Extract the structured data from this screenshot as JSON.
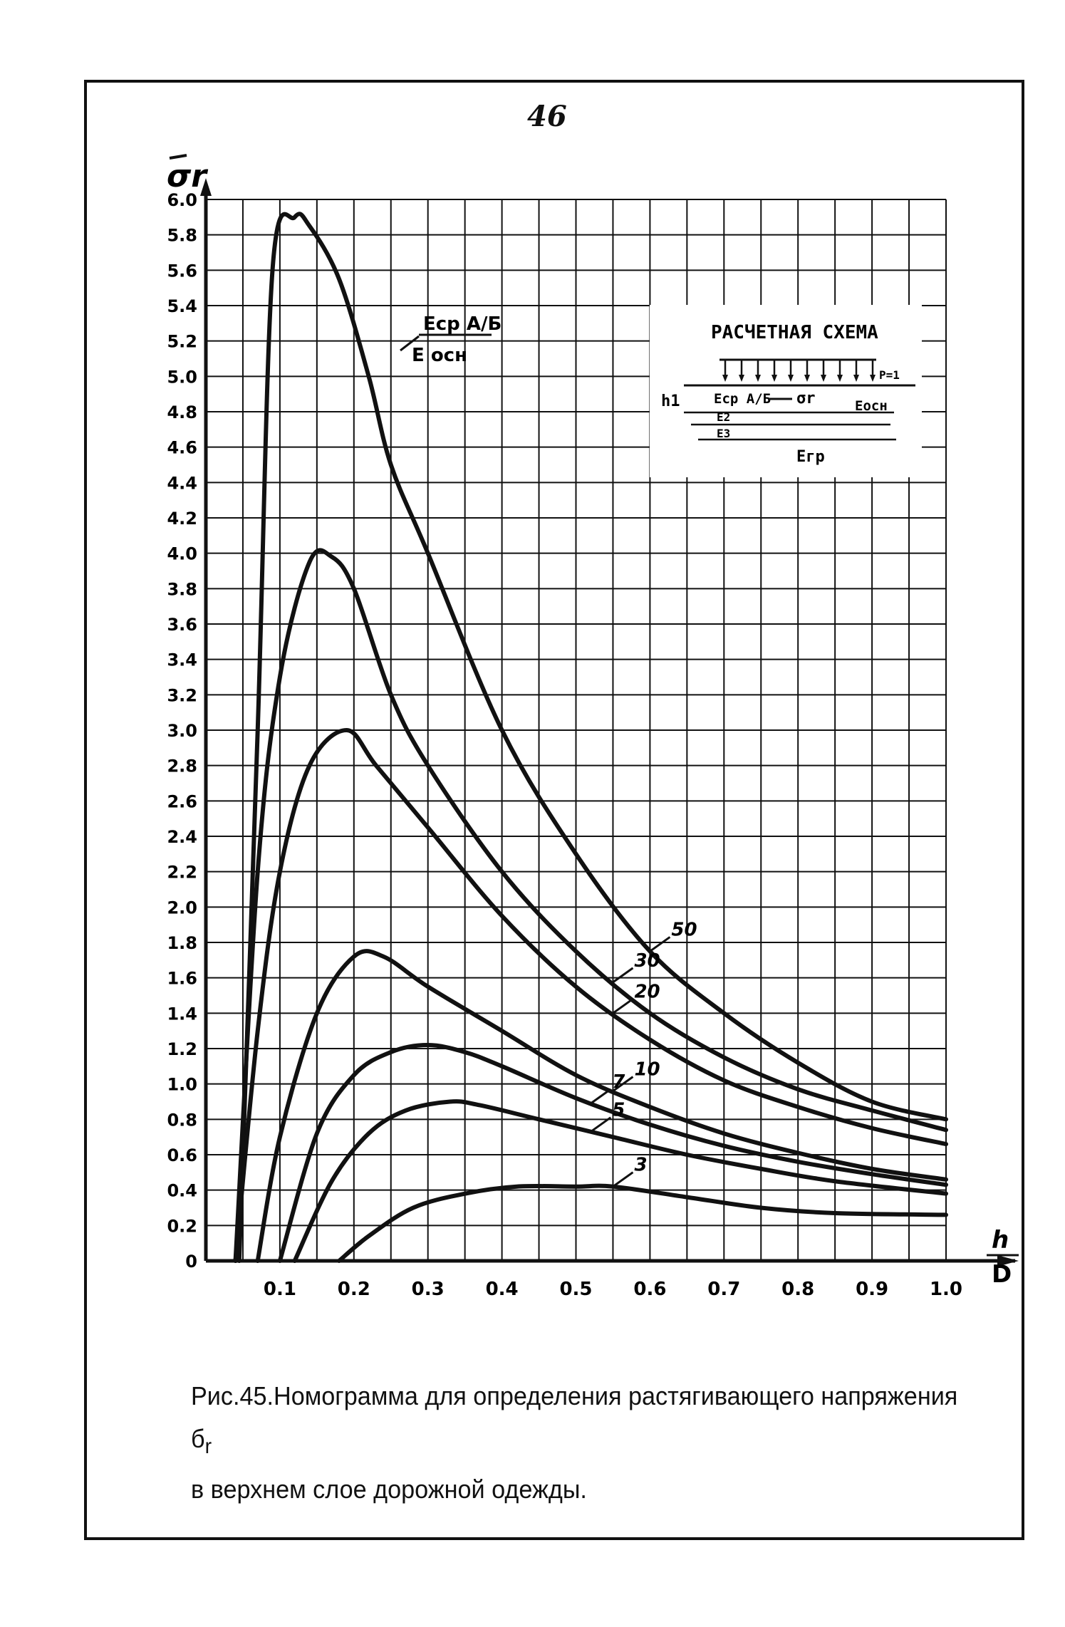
{
  "page": {
    "number": "46"
  },
  "caption": {
    "line1": "Рис.45.Номограмма для определения растягивающего напряжения б",
    "line1_sub": "r",
    "line2": "в верхнем слое дорожной одежды."
  },
  "scheme": {
    "title": "РАСЧЕТНАЯ СХЕМА",
    "h1": "h1",
    "p": "P=1",
    "e_ab": "Eср А/Б",
    "sigma": "σr",
    "e_osn": "Eосн",
    "e2": "E2",
    "e3": "E3",
    "egr": "Eгр"
  },
  "chart_data": {
    "type": "line",
    "title": "",
    "ylabel": "σr",
    "xlabel": "h/D",
    "xlim": [
      0,
      1.0
    ],
    "ylim": [
      0,
      6.0
    ],
    "grid": true,
    "legend_placement": "inline labels on curves",
    "param_label": {
      "top": "Eср А/Б",
      "bottom": "E осн"
    },
    "x_ticks": [
      "0.1",
      "0.2",
      "0.3",
      "0.4",
      "0.5",
      "0.6",
      "0.7",
      "0.8",
      "0.9",
      "1.0"
    ],
    "y_ticks": [
      "0",
      "0.2",
      "0.4",
      "0.6",
      "0.8",
      "1.0",
      "1.2",
      "1.4",
      "1.6",
      "1.8",
      "2.0",
      "2.2",
      "2.4",
      "2.6",
      "2.8",
      "3.0",
      "3.2",
      "3.4",
      "3.6",
      "3.8",
      "4.0",
      "4.2",
      "4.4",
      "4.6",
      "4.8",
      "5.0",
      "5.2",
      "5.4",
      "5.6",
      "5.8",
      "6.0"
    ],
    "series": [
      {
        "name": "50",
        "x": [
          0.045,
          0.07,
          0.09,
          0.12,
          0.14,
          0.18,
          0.22,
          0.25,
          0.3,
          0.4,
          0.5,
          0.6,
          0.7,
          0.8,
          0.9,
          1.0
        ],
        "y": [
          0,
          3.0,
          5.6,
          5.9,
          5.85,
          5.55,
          5.0,
          4.5,
          4.0,
          3.0,
          2.3,
          1.75,
          1.4,
          1.12,
          0.9,
          0.8
        ]
      },
      {
        "name": "30",
        "x": [
          0.04,
          0.07,
          0.1,
          0.14,
          0.17,
          0.2,
          0.25,
          0.3,
          0.4,
          0.5,
          0.6,
          0.7,
          0.8,
          0.9,
          1.0
        ],
        "y": [
          0,
          2.2,
          3.3,
          3.95,
          3.98,
          3.8,
          3.2,
          2.8,
          2.2,
          1.75,
          1.4,
          1.15,
          0.97,
          0.85,
          0.74
        ]
      },
      {
        "name": "20",
        "x": [
          0.04,
          0.07,
          0.1,
          0.14,
          0.19,
          0.23,
          0.3,
          0.4,
          0.5,
          0.6,
          0.7,
          0.8,
          0.9,
          1.0
        ],
        "y": [
          0,
          1.3,
          2.2,
          2.8,
          3.0,
          2.8,
          2.45,
          1.95,
          1.55,
          1.25,
          1.02,
          0.87,
          0.75,
          0.66
        ]
      },
      {
        "name": "10",
        "x": [
          0.07,
          0.1,
          0.15,
          0.2,
          0.24,
          0.3,
          0.4,
          0.5,
          0.6,
          0.7,
          0.8,
          0.9,
          1.0
        ],
        "y": [
          0,
          0.7,
          1.4,
          1.72,
          1.72,
          1.55,
          1.3,
          1.05,
          0.87,
          0.72,
          0.61,
          0.52,
          0.46
        ]
      },
      {
        "name": "7",
        "x": [
          0.1,
          0.15,
          0.2,
          0.25,
          0.3,
          0.35,
          0.4,
          0.5,
          0.6,
          0.7,
          0.8,
          0.9,
          1.0
        ],
        "y": [
          0,
          0.72,
          1.05,
          1.18,
          1.22,
          1.18,
          1.1,
          0.92,
          0.77,
          0.65,
          0.56,
          0.49,
          0.43
        ]
      },
      {
        "name": "5",
        "x": [
          0.12,
          0.17,
          0.22,
          0.27,
          0.33,
          0.37,
          0.45,
          0.55,
          0.65,
          0.75,
          0.85,
          1.0
        ],
        "y": [
          0,
          0.45,
          0.72,
          0.85,
          0.9,
          0.88,
          0.8,
          0.7,
          0.6,
          0.52,
          0.45,
          0.38
        ]
      },
      {
        "name": "3",
        "x": [
          0.18,
          0.22,
          0.28,
          0.35,
          0.42,
          0.5,
          0.55,
          0.65,
          0.75,
          0.85,
          1.0
        ],
        "y": [
          0,
          0.14,
          0.3,
          0.38,
          0.42,
          0.42,
          0.42,
          0.36,
          0.3,
          0.27,
          0.26
        ]
      }
    ]
  }
}
